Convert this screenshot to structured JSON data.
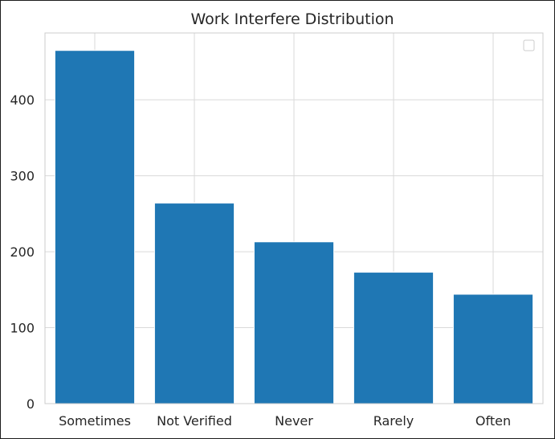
{
  "chart_data": {
    "type": "bar",
    "title": "Work Interfere Distribution",
    "xlabel": "",
    "ylabel": "",
    "categories": [
      "Sometimes",
      "Not Verified",
      "Never",
      "Rarely",
      "Often"
    ],
    "values": [
      465,
      264,
      213,
      173,
      144
    ],
    "ylim": [
      0,
      488
    ],
    "yticks": [
      0,
      100,
      200,
      300,
      400
    ],
    "grid": true,
    "legend": "top-right",
    "colors": {
      "bar": "#1f77b4",
      "grid": "#d9d9d9",
      "axes_edge": "#cccccc",
      "text": "#262626"
    }
  }
}
